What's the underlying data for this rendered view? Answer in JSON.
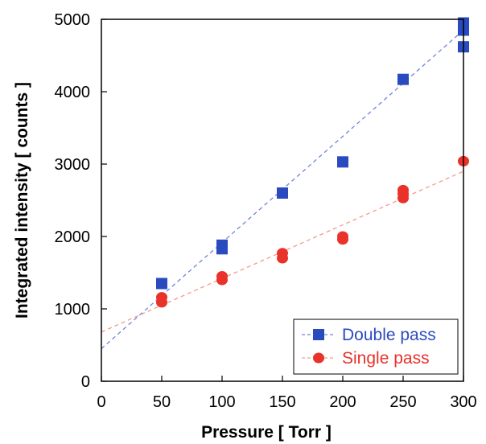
{
  "chart_data": {
    "type": "scatter",
    "title": "",
    "xlabel": "Pressure [ Torr ]",
    "ylabel": "Integrated intensity [ counts ]",
    "xlim": [
      0,
      300
    ],
    "ylim": [
      0,
      5000
    ],
    "x_ticks": [
      0,
      50,
      100,
      150,
      200,
      250,
      300
    ],
    "y_ticks": [
      0,
      1000,
      2000,
      3000,
      4000,
      5000
    ],
    "x_tick_labels": [
      "0",
      "50",
      "100",
      "150",
      "200",
      "250",
      "300"
    ],
    "y_tick_labels": [
      "0",
      "1000",
      "2000",
      "3000",
      "4000",
      "5000"
    ],
    "grid": false,
    "legend_position": "bottom-right",
    "series": [
      {
        "name": "Double pass",
        "color": "#2a4bbf",
        "marker": "square",
        "points": [
          {
            "x": 50,
            "y": 1350
          },
          {
            "x": 100,
            "y": 1830
          },
          {
            "x": 100,
            "y": 1880
          },
          {
            "x": 150,
            "y": 2600
          },
          {
            "x": 200,
            "y": 3030
          },
          {
            "x": 250,
            "y": 4170
          },
          {
            "x": 300,
            "y": 4620
          },
          {
            "x": 300,
            "y": 4850
          },
          {
            "x": 300,
            "y": 4950
          }
        ],
        "fit": {
          "x": [
            0,
            300
          ],
          "y": [
            450,
            4850
          ]
        }
      },
      {
        "name": "Single pass",
        "color": "#e8322a",
        "marker": "circle",
        "points": [
          {
            "x": 50,
            "y": 1090
          },
          {
            "x": 50,
            "y": 1160
          },
          {
            "x": 100,
            "y": 1400
          },
          {
            "x": 100,
            "y": 1450
          },
          {
            "x": 150,
            "y": 1700
          },
          {
            "x": 150,
            "y": 1770
          },
          {
            "x": 200,
            "y": 1960
          },
          {
            "x": 200,
            "y": 2000
          },
          {
            "x": 250,
            "y": 2530
          },
          {
            "x": 250,
            "y": 2590
          },
          {
            "x": 250,
            "y": 2640
          },
          {
            "x": 300,
            "y": 3040
          }
        ],
        "fit": {
          "x": [
            0,
            300
          ],
          "y": [
            680,
            2900
          ]
        }
      }
    ]
  }
}
